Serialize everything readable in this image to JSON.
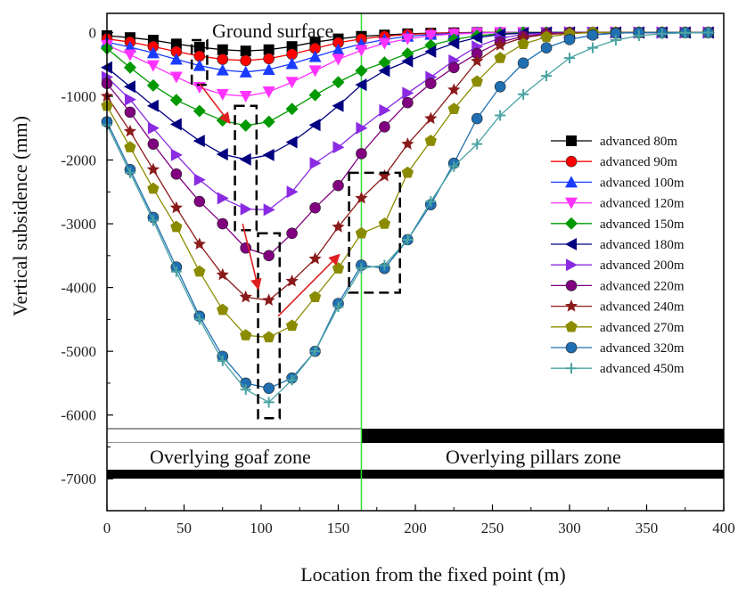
{
  "chart_data": {
    "type": "line",
    "xlabel": "Location from the fixed point (m)",
    "ylabel": "Vertical subsidence (mm)",
    "xlim": [
      0,
      400
    ],
    "ylim": [
      -7500,
      300
    ],
    "xticks": [
      0,
      50,
      100,
      150,
      200,
      250,
      300,
      350,
      400
    ],
    "yticks": [
      0,
      -1000,
      -2000,
      -3000,
      -4000,
      -5000,
      -6000,
      -7000
    ],
    "grid": false,
    "legend_position": "right",
    "annotations": {
      "ground_surface": "Ground surface",
      "goaf_zone": "Overlying goaf zone",
      "pillars_zone": "Overlying pillars zone",
      "zone_boundary_x": 165
    },
    "x": [
      0,
      15,
      30,
      45,
      60,
      75,
      90,
      105,
      120,
      135,
      150,
      165,
      180,
      195,
      210,
      225,
      240,
      255,
      270,
      285,
      300,
      315,
      330,
      345,
      360,
      375,
      390
    ],
    "series": [
      {
        "name": "advanced 80m",
        "color": "#000000",
        "marker": "square",
        "values": [
          -50,
          -80,
          -120,
          -180,
          -230,
          -270,
          -290,
          -270,
          -220,
          -150,
          -100,
          -60,
          -40,
          -20,
          -10,
          -5,
          0,
          0,
          0,
          0,
          0,
          0,
          0,
          0,
          0,
          0,
          0
        ]
      },
      {
        "name": "advanced 90m",
        "color": "#ff0000",
        "marker": "circle",
        "values": [
          -100,
          -150,
          -220,
          -300,
          -370,
          -420,
          -440,
          -410,
          -340,
          -250,
          -160,
          -100,
          -60,
          -30,
          -15,
          -5,
          0,
          0,
          0,
          0,
          0,
          0,
          0,
          0,
          0,
          0,
          0
        ]
      },
      {
        "name": "advanced 100m",
        "color": "#1a3cff",
        "marker": "triangle-up",
        "values": [
          -150,
          -230,
          -320,
          -420,
          -520,
          -590,
          -620,
          -580,
          -490,
          -380,
          -270,
          -180,
          -110,
          -60,
          -30,
          -15,
          -5,
          0,
          0,
          0,
          0,
          0,
          0,
          0,
          0,
          0,
          0
        ]
      },
      {
        "name": "advanced 120m",
        "color": "#ff33ff",
        "marker": "triangle-down",
        "values": [
          -200,
          -350,
          -520,
          -700,
          -860,
          -970,
          -1000,
          -930,
          -780,
          -600,
          -420,
          -280,
          -170,
          -100,
          -50,
          -25,
          -10,
          0,
          0,
          0,
          0,
          0,
          0,
          0,
          0,
          0,
          0
        ]
      },
      {
        "name": "advanced 150m",
        "color": "#009900",
        "marker": "diamond",
        "values": [
          -250,
          -550,
          -830,
          -1060,
          -1230,
          -1380,
          -1460,
          -1400,
          -1200,
          -980,
          -780,
          -600,
          -470,
          -330,
          -200,
          -110,
          -50,
          -20,
          0,
          0,
          0,
          0,
          0,
          0,
          0,
          0,
          0
        ]
      },
      {
        "name": "advanced 180m",
        "color": "#000080",
        "marker": "triangle-left",
        "values": [
          -550,
          -850,
          -1150,
          -1440,
          -1700,
          -1910,
          -1990,
          -1920,
          -1720,
          -1450,
          -1150,
          -820,
          -600,
          -450,
          -300,
          -170,
          -80,
          -30,
          -10,
          0,
          0,
          0,
          0,
          0,
          0,
          0,
          0
        ]
      },
      {
        "name": "advanced 200m",
        "color": "#8a2be2",
        "marker": "triangle-right",
        "values": [
          -700,
          -1050,
          -1500,
          -1920,
          -2310,
          -2600,
          -2770,
          -2780,
          -2500,
          -2050,
          -1800,
          -1500,
          -1220,
          -950,
          -700,
          -440,
          -220,
          -90,
          -30,
          -10,
          0,
          0,
          0,
          0,
          0,
          0,
          0
        ]
      },
      {
        "name": "advanced 220m",
        "color": "#800080",
        "marker": "circle",
        "values": [
          -800,
          -1250,
          -1750,
          -2220,
          -2650,
          -3000,
          -3380,
          -3500,
          -3150,
          -2750,
          -2400,
          -1900,
          -1480,
          -1100,
          -800,
          -550,
          -330,
          -150,
          -60,
          -20,
          0,
          0,
          0,
          0,
          0,
          0,
          0
        ]
      },
      {
        "name": "advanced 240m",
        "color": "#8b1a1a",
        "marker": "star",
        "values": [
          -1000,
          -1550,
          -2150,
          -2750,
          -3320,
          -3800,
          -4150,
          -4200,
          -3900,
          -3550,
          -3050,
          -2600,
          -2250,
          -1750,
          -1350,
          -900,
          -450,
          -200,
          -80,
          -30,
          -10,
          0,
          0,
          0,
          0,
          0,
          0
        ]
      },
      {
        "name": "advanced 270m",
        "color": "#8b8b00",
        "marker": "pentagon",
        "values": [
          -1150,
          -1800,
          -2450,
          -3050,
          -3750,
          -4350,
          -4750,
          -4780,
          -4600,
          -4150,
          -3700,
          -3150,
          -3000,
          -2200,
          -1700,
          -1200,
          -770,
          -400,
          -180,
          -70,
          -20,
          0,
          0,
          0,
          0,
          0,
          0
        ]
      },
      {
        "name": "advanced 320m",
        "color": "#1f6fb2",
        "marker": "circle",
        "values": [
          -1400,
          -2150,
          -2900,
          -3680,
          -4450,
          -5080,
          -5500,
          -5580,
          -5420,
          -5000,
          -4250,
          -3650,
          -3700,
          -3250,
          -2700,
          -2050,
          -1350,
          -850,
          -480,
          -240,
          -110,
          -40,
          -10,
          0,
          0,
          0,
          0
        ]
      },
      {
        "name": "advanced 450m",
        "color": "#4aa3a3",
        "marker": "plus",
        "values": [
          -1450,
          -2200,
          -2950,
          -3750,
          -4500,
          -5150,
          -5600,
          -5800,
          -5450,
          -5000,
          -4300,
          -3700,
          -3650,
          -3250,
          -2650,
          -2100,
          -1750,
          -1300,
          -970,
          -680,
          -400,
          -240,
          -120,
          -50,
          -20,
          -5,
          0
        ]
      }
    ]
  }
}
